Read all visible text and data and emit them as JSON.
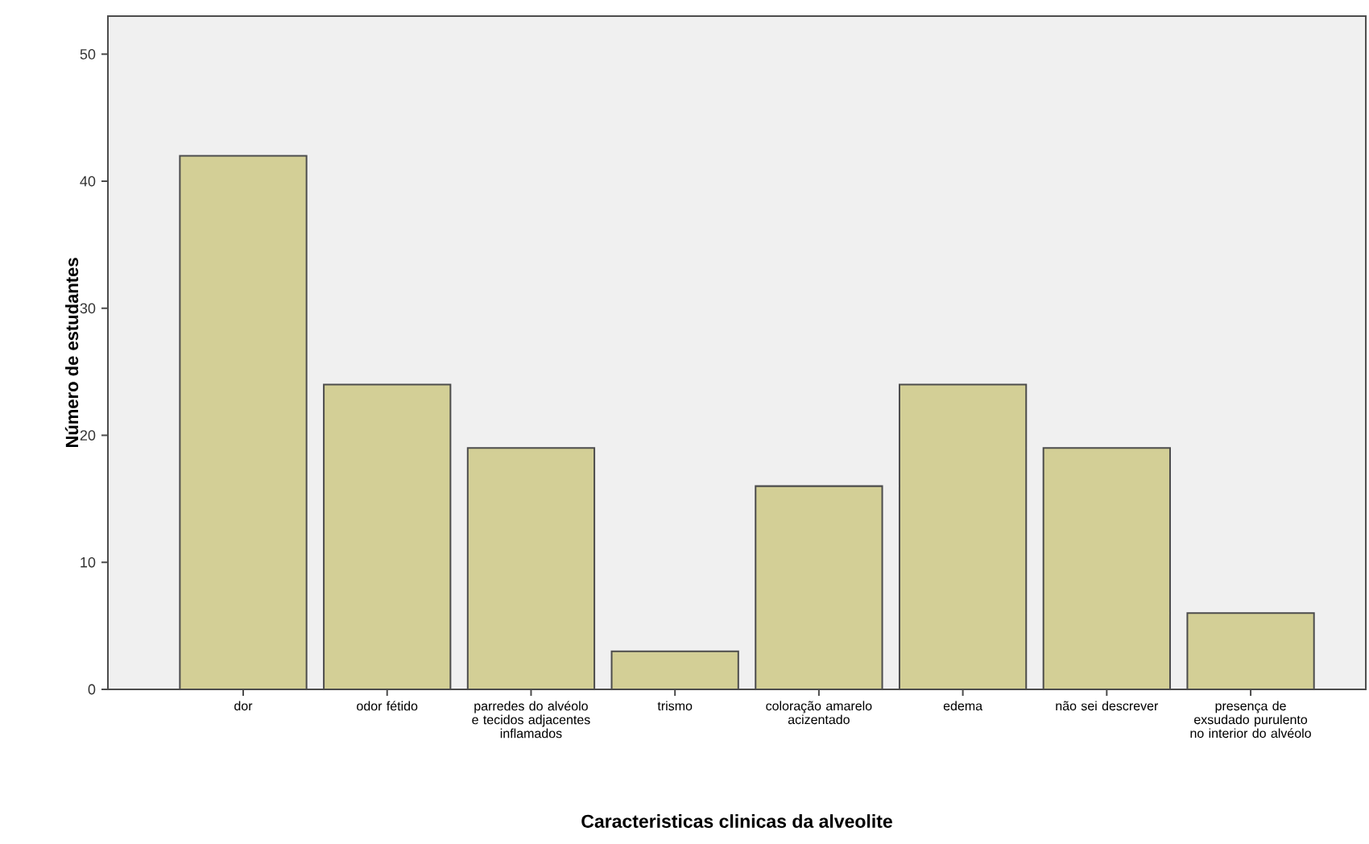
{
  "chart_data": {
    "type": "bar",
    "xlabel": "Caracteristicas clinicas da alveolite",
    "ylabel": "Número de estudantes",
    "categories": [
      "dor",
      "odor fétido",
      "parredes do alvéolo e tecidos adjacentes inflamados",
      "trismo",
      "coloração amarelo acizentado",
      "edema",
      "não sei descrever",
      "presença de exsudado purulento no interior do alvéolo"
    ],
    "values": [
      42,
      24,
      19,
      3,
      16,
      24,
      19,
      6
    ],
    "color": "#d3cf96",
    "ylim": [
      0,
      53
    ],
    "yticks": [
      0,
      10,
      20,
      30,
      40,
      50
    ],
    "grid": false
  }
}
